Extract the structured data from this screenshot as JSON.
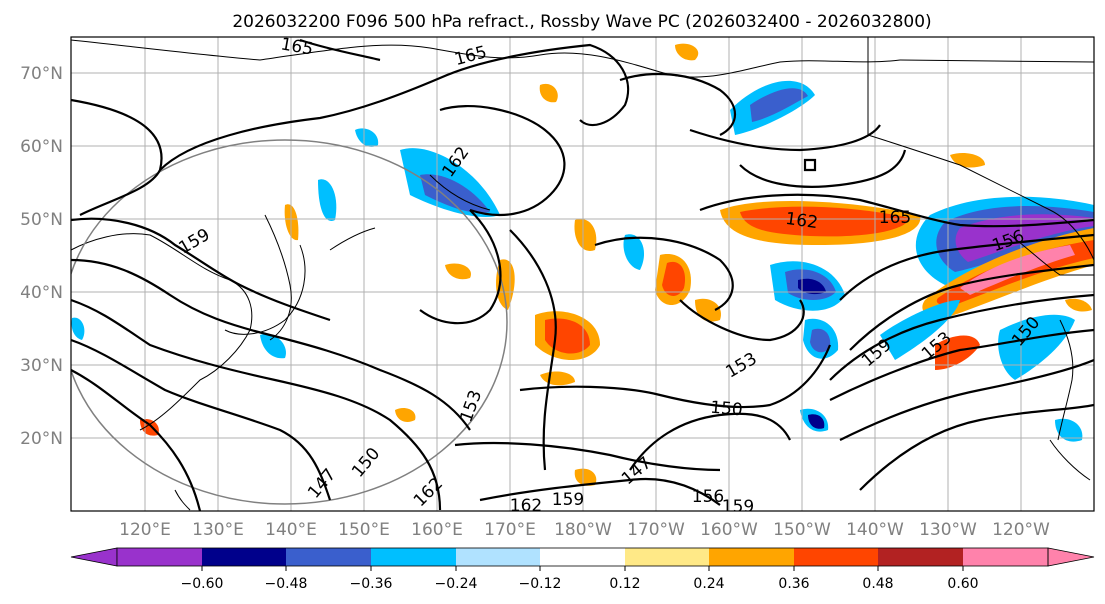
{
  "title": "2026032200 F096 500 hPa refract., Rossby Wave PC (2026032400 - 2026032800)",
  "lat_labels": [
    "70°N",
    "60°N",
    "50°N",
    "40°N",
    "30°N",
    "20°N"
  ],
  "lon_labels": [
    "120°E",
    "130°E",
    "140°E",
    "150°E",
    "160°E",
    "170°E",
    "180°W",
    "170°W",
    "160°W",
    "150°W",
    "140°W",
    "130°W",
    "120°W"
  ],
  "colorbar": {
    "ticks": [
      "−0.60",
      "−0.48",
      "−0.36",
      "−0.24",
      "−0.12",
      "0.12",
      "0.24",
      "0.36",
      "0.48",
      "0.60"
    ],
    "colors": [
      "#9932cc",
      "#00008b",
      "#3a5fcd",
      "#00bfff",
      "#b0e2ff",
      "#ffffff",
      "#ffe987",
      "#ffa500",
      "#ff4500",
      "#b22222",
      "#ff82ab"
    ]
  },
  "contour_labels": [
    "165",
    "165",
    "162",
    "159",
    "162",
    "165",
    "156",
    "153",
    "153",
    "150",
    "147",
    "147",
    "150",
    "162",
    "159",
    "156",
    "159",
    "159",
    "153",
    "150",
    "162"
  ],
  "colors": {
    "grid": "#b0b0b0",
    "tick_text": "#808080"
  }
}
